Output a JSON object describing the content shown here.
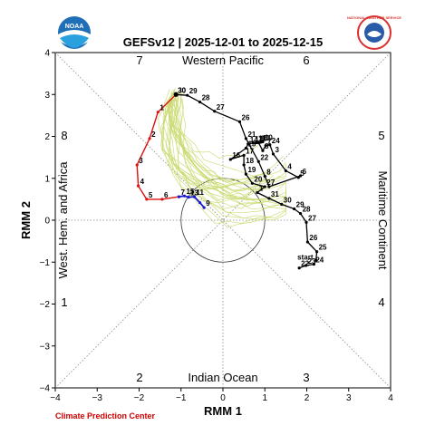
{
  "header": {
    "title": "GEFSv12 | 2025-12-01 to 2025-12-15",
    "noaa_logo_text": "NOAA",
    "nws_logo_text": "NATIONAL WEATHER SERVICE"
  },
  "footer": {
    "credit": "Climate Prediction Center"
  },
  "chart_data": {
    "type": "line",
    "title": "GEFSv12 | 2025-12-01 to 2025-12-15",
    "xlabel": "RMM 1",
    "ylabel": "RMM 2",
    "xlim": [
      -4,
      4
    ],
    "ylim": [
      -4,
      4
    ],
    "xticks": [
      "−4",
      "−3",
      "−2",
      "−1",
      "0",
      "1",
      "2",
      "3",
      "4"
    ],
    "yticks": [
      "−4",
      "−3",
      "−2",
      "−1",
      "0",
      "1",
      "2",
      "3",
      "4"
    ],
    "unit_circle_radius": 1,
    "phase_labels": [
      "1",
      "2",
      "3",
      "4",
      "5",
      "6",
      "7",
      "8"
    ],
    "region_labels": {
      "top": "Western Pacific",
      "bottom": "Indian Ocean",
      "left": "West. Hem. and Africa",
      "right": "Maritime Continent"
    },
    "observed": {
      "color": "#000000",
      "start_label": "start",
      "points": [
        [
          1.82,
          -1.14,
          "22"
        ],
        [
          1.98,
          -1.08,
          "23"
        ],
        [
          2.17,
          -1.05,
          "24"
        ],
        [
          2.22,
          -0.95,
          ""
        ],
        [
          2.24,
          -0.75,
          "25"
        ],
        [
          2.02,
          -0.52,
          "26"
        ],
        [
          1.99,
          -0.05,
          "27"
        ],
        [
          1.85,
          0.16,
          "28"
        ],
        [
          1.7,
          0.27,
          "29"
        ],
        [
          1.4,
          0.38,
          "30"
        ],
        [
          1.1,
          0.52,
          "31"
        ],
        [
          0.82,
          0.66,
          "1"
        ],
        [
          1.0,
          0.8,
          "2"
        ],
        [
          0.7,
          0.88,
          "20"
        ],
        [
          0.55,
          1.1,
          "19"
        ],
        [
          0.5,
          1.32,
          "18"
        ],
        [
          0.5,
          1.55,
          "17"
        ],
        [
          0.18,
          1.45,
          "16"
        ],
        [
          0.55,
          1.72,
          "15"
        ],
        [
          0.6,
          1.82,
          "14"
        ],
        [
          0.72,
          1.84,
          "13"
        ],
        [
          0.8,
          1.85,
          "12"
        ],
        [
          0.9,
          1.86,
          "11"
        ],
        [
          0.95,
          1.87,
          "10"
        ],
        [
          0.85,
          1.85,
          "9"
        ],
        [
          0.95,
          1.66,
          "8"
        ],
        [
          1.02,
          1.78,
          "7"
        ],
        [
          1.12,
          1.8,
          "24"
        ],
        [
          1.2,
          1.58,
          "3"
        ],
        [
          1.5,
          1.18,
          "4"
        ],
        [
          1.8,
          1.02,
          "5"
        ],
        [
          1.85,
          1.06,
          "6"
        ],
        [
          1.1,
          0.8,
          "7"
        ],
        [
          1.0,
          1.05,
          "8"
        ],
        [
          0.85,
          1.4,
          "22"
        ],
        [
          0.55,
          1.95,
          "21"
        ],
        [
          0.4,
          2.35,
          "26"
        ],
        [
          -0.2,
          2.6,
          "27"
        ],
        [
          -0.55,
          2.82,
          "28"
        ],
        [
          -0.85,
          2.98,
          "29"
        ],
        [
          -1.12,
          3.0,
          "30"
        ]
      ]
    },
    "forecast_mean": {
      "color": "#dd1111",
      "points": [
        [
          -1.12,
          3.0,
          "30"
        ],
        [
          -1.55,
          2.58,
          "1"
        ],
        [
          -1.75,
          1.95,
          "2"
        ],
        [
          -2.05,
          1.32,
          "3"
        ],
        [
          -2.02,
          0.82,
          "4"
        ],
        [
          -1.82,
          0.5,
          "5"
        ],
        [
          -1.45,
          0.5,
          "6"
        ],
        [
          -1.05,
          0.56,
          "7"
        ]
      ]
    },
    "forecast_week2": {
      "color": "#1a1acc",
      "points": [
        [
          -1.05,
          0.56,
          ""
        ],
        [
          -0.92,
          0.58,
          "15"
        ],
        [
          -0.82,
          0.55,
          "13"
        ],
        [
          -0.68,
          0.56,
          "11"
        ],
        [
          -0.55,
          0.42,
          ""
        ],
        [
          -0.45,
          0.3,
          "9"
        ]
      ]
    },
    "ensemble_color": "#c8d86a",
    "ensemble_count": 30
  }
}
